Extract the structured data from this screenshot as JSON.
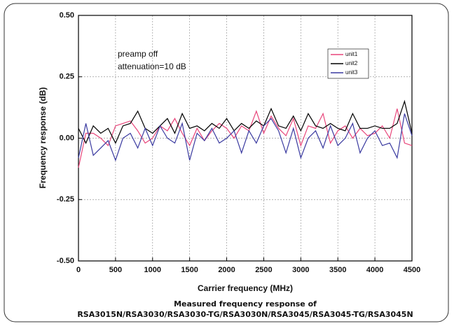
{
  "chart_data": {
    "type": "line",
    "xlabel": "Carrier frequency (MHz)",
    "ylabel": "Frequency response (dB)",
    "annotations": [
      "preamp off",
      "attenuation=10 dB"
    ],
    "caption": [
      "Measured frequency response of",
      "RSA3015N/RSA3030/RSA3030-TG/RSA3030N/RSA3045/RSA3045-TG/RSA3045N"
    ],
    "x": [
      0,
      100,
      200,
      300,
      400,
      500,
      600,
      700,
      800,
      900,
      1000,
      1100,
      1200,
      1300,
      1400,
      1500,
      1600,
      1700,
      1800,
      1900,
      2000,
      2100,
      2200,
      2300,
      2400,
      2500,
      2600,
      2700,
      2800,
      2900,
      3000,
      3100,
      3200,
      3300,
      3400,
      3500,
      3600,
      3700,
      3800,
      3900,
      4000,
      4100,
      4200,
      4300,
      4400,
      4500
    ],
    "series": [
      {
        "name": "unit1",
        "color": "#e8457a",
        "values": [
          -0.12,
          0.02,
          0.02,
          0.0,
          -0.03,
          0.05,
          0.06,
          0.07,
          0.03,
          -0.02,
          0.0,
          0.05,
          0.03,
          0.08,
          0.02,
          -0.03,
          0.04,
          -0.01,
          0.03,
          0.06,
          0.04,
          0.0,
          0.05,
          0.03,
          0.11,
          0.02,
          0.09,
          0.04,
          0.01,
          0.08,
          -0.03,
          0.05,
          0.04,
          0.1,
          -0.02,
          0.03,
          0.05,
          0.0,
          0.04,
          0.01,
          0.02,
          0.05,
          0.0,
          0.12,
          -0.02,
          -0.03
        ]
      },
      {
        "name": "unit2",
        "color": "#000000",
        "values": [
          0.04,
          -0.02,
          0.05,
          0.02,
          0.04,
          -0.02,
          0.05,
          0.06,
          0.11,
          0.04,
          0.02,
          0.05,
          0.08,
          0.02,
          0.1,
          0.04,
          0.05,
          0.03,
          0.06,
          0.04,
          0.08,
          0.03,
          0.06,
          0.04,
          0.07,
          0.05,
          0.12,
          0.05,
          0.04,
          0.09,
          0.03,
          0.1,
          0.05,
          0.04,
          0.06,
          0.04,
          0.03,
          0.1,
          0.04,
          0.04,
          0.05,
          0.04,
          0.04,
          0.06,
          0.15,
          0.02
        ]
      },
      {
        "name": "unit3",
        "color": "#3a3aa0",
        "values": [
          -0.08,
          0.06,
          -0.07,
          -0.04,
          -0.01,
          -0.09,
          0.0,
          0.02,
          -0.04,
          0.04,
          -0.03,
          0.05,
          0.0,
          -0.02,
          0.06,
          -0.09,
          0.02,
          -0.01,
          0.04,
          -0.02,
          0.0,
          0.03,
          -0.06,
          0.03,
          -0.02,
          0.05,
          0.08,
          0.03,
          -0.06,
          0.04,
          -0.08,
          0.0,
          0.03,
          -0.04,
          0.05,
          -0.03,
          0.0,
          0.06,
          -0.06,
          0.0,
          0.03,
          -0.03,
          -0.02,
          -0.08,
          0.1,
          0.01
        ]
      }
    ],
    "xlim": [
      0,
      4500
    ],
    "xticks": [
      0,
      500,
      1000,
      1500,
      2000,
      2500,
      3000,
      3500,
      4000,
      4500
    ],
    "ylim": [
      -0.5,
      0.5
    ],
    "yticks": [
      {
        "value": -0.5,
        "label": "-0.50"
      },
      {
        "value": -0.25,
        "label": "-0.25"
      },
      {
        "value": 0,
        "label": "0.00"
      },
      {
        "value": 0.25,
        "label": "0.25"
      },
      {
        "value": 0.5,
        "label": "0.50"
      }
    ],
    "grid": true,
    "legend": "upper right"
  }
}
